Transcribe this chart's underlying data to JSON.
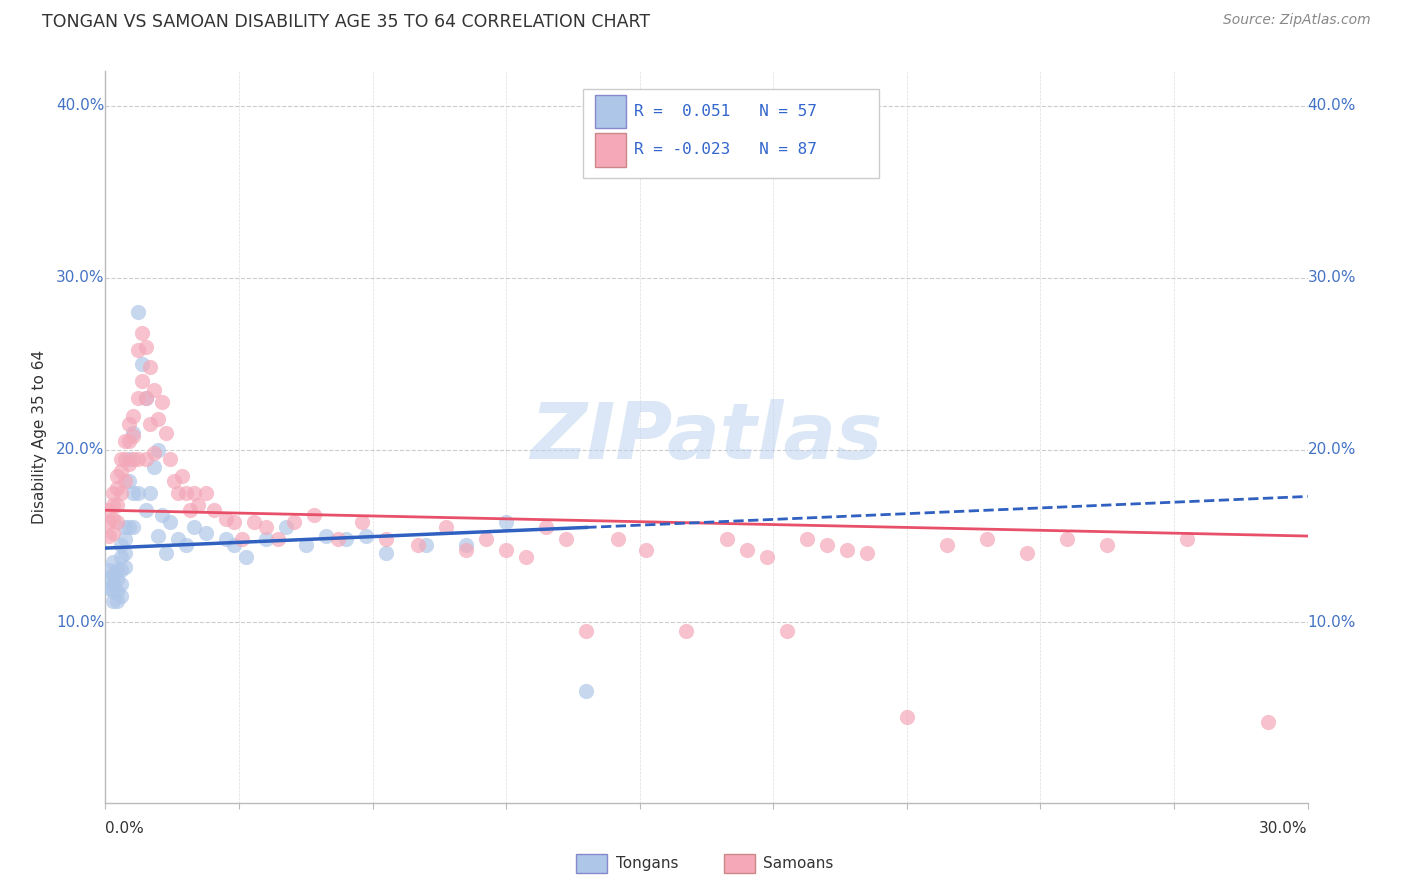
{
  "title": "TONGAN VS SAMOAN DISABILITY AGE 35 TO 64 CORRELATION CHART",
  "source": "Source: ZipAtlas.com",
  "ylabel": "Disability Age 35 to 64",
  "xlim": [
    0.0,
    0.3
  ],
  "ylim": [
    -0.005,
    0.42
  ],
  "yticks": [
    0.1,
    0.2,
    0.3,
    0.4
  ],
  "ytick_labels": [
    "10.0%",
    "20.0%",
    "30.0%",
    "40.0%"
  ],
  "tongan_color": "#aec6e8",
  "samoan_color": "#f4a8b8",
  "tongan_line_color": "#3060c0",
  "samoan_line_color": "#e8506a",
  "legend_r_tongan": "R =  0.051",
  "legend_n_tongan": "N = 57",
  "legend_r_samoan": "R = -0.023",
  "legend_n_samoan": "N = 87",
  "watermark": "ZIPatlas",
  "tongan_x": [
    0.001,
    0.001,
    0.001,
    0.002,
    0.002,
    0.002,
    0.002,
    0.002,
    0.003,
    0.003,
    0.003,
    0.003,
    0.004,
    0.004,
    0.004,
    0.004,
    0.004,
    0.005,
    0.005,
    0.005,
    0.005,
    0.006,
    0.006,
    0.006,
    0.007,
    0.007,
    0.007,
    0.008,
    0.008,
    0.009,
    0.01,
    0.01,
    0.011,
    0.012,
    0.013,
    0.013,
    0.014,
    0.015,
    0.016,
    0.018,
    0.02,
    0.022,
    0.025,
    0.03,
    0.032,
    0.035,
    0.04,
    0.045,
    0.05,
    0.055,
    0.06,
    0.065,
    0.07,
    0.08,
    0.09,
    0.1,
    0.12
  ],
  "tongan_y": [
    0.13,
    0.125,
    0.12,
    0.135,
    0.128,
    0.122,
    0.118,
    0.112,
    0.13,
    0.125,
    0.118,
    0.112,
    0.145,
    0.138,
    0.13,
    0.122,
    0.115,
    0.155,
    0.148,
    0.14,
    0.132,
    0.195,
    0.182,
    0.155,
    0.21,
    0.175,
    0.155,
    0.28,
    0.175,
    0.25,
    0.23,
    0.165,
    0.175,
    0.19,
    0.2,
    0.15,
    0.162,
    0.14,
    0.158,
    0.148,
    0.145,
    0.155,
    0.152,
    0.148,
    0.145,
    0.138,
    0.148,
    0.155,
    0.145,
    0.15,
    0.148,
    0.15,
    0.14,
    0.145,
    0.145,
    0.158,
    0.06
  ],
  "samoan_x": [
    0.001,
    0.001,
    0.001,
    0.002,
    0.002,
    0.002,
    0.002,
    0.003,
    0.003,
    0.003,
    0.003,
    0.004,
    0.004,
    0.004,
    0.005,
    0.005,
    0.005,
    0.006,
    0.006,
    0.006,
    0.007,
    0.007,
    0.007,
    0.008,
    0.008,
    0.008,
    0.009,
    0.009,
    0.01,
    0.01,
    0.01,
    0.011,
    0.011,
    0.012,
    0.012,
    0.013,
    0.014,
    0.015,
    0.016,
    0.017,
    0.018,
    0.019,
    0.02,
    0.021,
    0.022,
    0.023,
    0.025,
    0.027,
    0.03,
    0.032,
    0.034,
    0.037,
    0.04,
    0.043,
    0.047,
    0.052,
    0.058,
    0.064,
    0.07,
    0.078,
    0.085,
    0.09,
    0.095,
    0.1,
    0.105,
    0.11,
    0.115,
    0.12,
    0.128,
    0.135,
    0.145,
    0.155,
    0.16,
    0.165,
    0.17,
    0.175,
    0.18,
    0.185,
    0.19,
    0.2,
    0.21,
    0.22,
    0.23,
    0.24,
    0.25,
    0.27,
    0.29
  ],
  "samoan_y": [
    0.165,
    0.158,
    0.15,
    0.175,
    0.168,
    0.16,
    0.152,
    0.185,
    0.178,
    0.168,
    0.158,
    0.195,
    0.188,
    0.175,
    0.205,
    0.195,
    0.182,
    0.215,
    0.205,
    0.192,
    0.22,
    0.208,
    0.195,
    0.258,
    0.23,
    0.195,
    0.268,
    0.24,
    0.26,
    0.23,
    0.195,
    0.248,
    0.215,
    0.235,
    0.198,
    0.218,
    0.228,
    0.21,
    0.195,
    0.182,
    0.175,
    0.185,
    0.175,
    0.165,
    0.175,
    0.168,
    0.175,
    0.165,
    0.16,
    0.158,
    0.148,
    0.158,
    0.155,
    0.148,
    0.158,
    0.162,
    0.148,
    0.158,
    0.148,
    0.145,
    0.155,
    0.142,
    0.148,
    0.142,
    0.138,
    0.155,
    0.148,
    0.095,
    0.148,
    0.142,
    0.095,
    0.148,
    0.142,
    0.138,
    0.095,
    0.148,
    0.145,
    0.142,
    0.14,
    0.045,
    0.145,
    0.148,
    0.14,
    0.148,
    0.145,
    0.148,
    0.042
  ]
}
